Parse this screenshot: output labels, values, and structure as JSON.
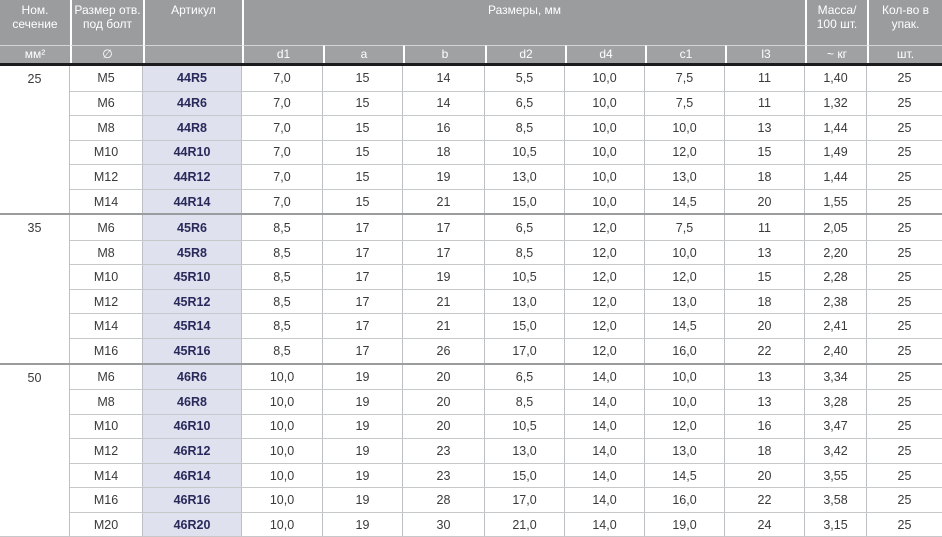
{
  "table": {
    "header": {
      "section_title": "Ном. сечение",
      "section_unit": "мм²",
      "bolt_title": "Размер отв. под болт",
      "bolt_unit": "∅",
      "article_title": "Артикул",
      "dimensions_title": "Размеры, мм",
      "dim_cols": [
        "d1",
        "a",
        "b",
        "d2",
        "d4",
        "c1",
        "l3"
      ],
      "mass_title": "Масса/ 100 шт.",
      "mass_unit": "~ кг",
      "qty_title": "Кол-во в упак.",
      "qty_unit": "шт."
    },
    "columns": [
      "bolt",
      "article",
      "d1",
      "a",
      "b",
      "d2",
      "d4",
      "c1",
      "l3",
      "mass",
      "qty"
    ],
    "groups": [
      {
        "section": "25",
        "rows": [
          [
            "M5",
            "44R5",
            "7,0",
            "15",
            "14",
            "5,5",
            "10,0",
            "7,5",
            "11",
            "1,40",
            "25"
          ],
          [
            "M6",
            "44R6",
            "7,0",
            "15",
            "14",
            "6,5",
            "10,0",
            "7,5",
            "11",
            "1,32",
            "25"
          ],
          [
            "M8",
            "44R8",
            "7,0",
            "15",
            "16",
            "8,5",
            "10,0",
            "10,0",
            "13",
            "1,44",
            "25"
          ],
          [
            "M10",
            "44R10",
            "7,0",
            "15",
            "18",
            "10,5",
            "10,0",
            "12,0",
            "15",
            "1,49",
            "25"
          ],
          [
            "M12",
            "44R12",
            "7,0",
            "15",
            "19",
            "13,0",
            "10,0",
            "13,0",
            "18",
            "1,44",
            "25"
          ],
          [
            "M14",
            "44R14",
            "7,0",
            "15",
            "21",
            "15,0",
            "10,0",
            "14,5",
            "20",
            "1,55",
            "25"
          ]
        ]
      },
      {
        "section": "35",
        "rows": [
          [
            "M6",
            "45R6",
            "8,5",
            "17",
            "17",
            "6,5",
            "12,0",
            "7,5",
            "11",
            "2,05",
            "25"
          ],
          [
            "M8",
            "45R8",
            "8,5",
            "17",
            "17",
            "8,5",
            "12,0",
            "10,0",
            "13",
            "2,20",
            "25"
          ],
          [
            "M10",
            "45R10",
            "8,5",
            "17",
            "19",
            "10,5",
            "12,0",
            "12,0",
            "15",
            "2,28",
            "25"
          ],
          [
            "M12",
            "45R12",
            "8,5",
            "17",
            "21",
            "13,0",
            "12,0",
            "13,0",
            "18",
            "2,38",
            "25"
          ],
          [
            "M14",
            "45R14",
            "8,5",
            "17",
            "21",
            "15,0",
            "12,0",
            "14,5",
            "20",
            "2,41",
            "25"
          ],
          [
            "M16",
            "45R16",
            "8,5",
            "17",
            "26",
            "17,0",
            "12,0",
            "16,0",
            "22",
            "2,40",
            "25"
          ]
        ]
      },
      {
        "section": "50",
        "rows": [
          [
            "M6",
            "46R6",
            "10,0",
            "19",
            "20",
            "6,5",
            "14,0",
            "10,0",
            "13",
            "3,34",
            "25"
          ],
          [
            "M8",
            "46R8",
            "10,0",
            "19",
            "20",
            "8,5",
            "14,0",
            "10,0",
            "13",
            "3,28",
            "25"
          ],
          [
            "M10",
            "46R10",
            "10,0",
            "19",
            "20",
            "10,5",
            "14,0",
            "12,0",
            "16",
            "3,47",
            "25"
          ],
          [
            "M12",
            "46R12",
            "10,0",
            "19",
            "23",
            "13,0",
            "14,0",
            "13,0",
            "18",
            "3,42",
            "25"
          ],
          [
            "M14",
            "46R14",
            "10,0",
            "19",
            "23",
            "15,0",
            "14,0",
            "14,5",
            "20",
            "3,55",
            "25"
          ],
          [
            "M16",
            "46R16",
            "10,0",
            "19",
            "28",
            "17,0",
            "14,0",
            "16,0",
            "22",
            "3,58",
            "25"
          ],
          [
            "M20",
            "46R20",
            "10,0",
            "19",
            "30",
            "21,0",
            "14,0",
            "19,0",
            "24",
            "3,15",
            "25"
          ]
        ]
      }
    ]
  }
}
